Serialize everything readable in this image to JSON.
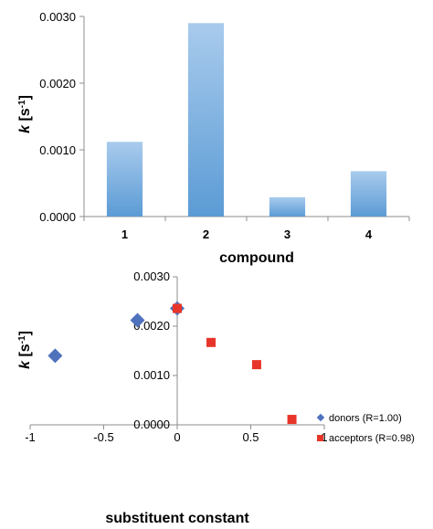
{
  "chart_data": [
    {
      "type": "bar",
      "categories": [
        "1",
        "2",
        "3",
        "4"
      ],
      "values": [
        0.00112,
        0.0029,
        0.00029,
        0.00068
      ],
      "xlabel": "compound",
      "ylabel_main": "k",
      "ylabel_unit": "[s",
      "ylabel_sup": "-1",
      "ylabel_close": "]",
      "ylim": [
        0,
        0.003
      ],
      "yticks": [
        "0.0000",
        "0.0010",
        "0.0020",
        "0.0030"
      ],
      "grid": false,
      "bar_color": "#5b9bd5"
    },
    {
      "type": "scatter",
      "xlabel": "substituent constant",
      "ylabel_main": "k",
      "ylabel_unit": "[s",
      "ylabel_sup": "-1",
      "ylabel_close": "]",
      "xlim": [
        -1,
        1
      ],
      "ylim": [
        0,
        0.003
      ],
      "xticks": [
        "-1",
        "-0.5",
        "0",
        "0.5",
        "1"
      ],
      "yticks": [
        "0.0000",
        "0.0010",
        "0.0020",
        "0.0030"
      ],
      "grid": false,
      "legend_position": "right",
      "series": [
        {
          "name": "donors (R=1.00)",
          "color": "#4f72bd",
          "marker": "diamond",
          "points": [
            [
              -0.83,
              0.0014
            ],
            [
              -0.27,
              0.00212
            ],
            [
              0.0,
              0.00236
            ]
          ]
        },
        {
          "name": "acceptors (R=0.98)",
          "color": "#e8352a",
          "marker": "square",
          "points": [
            [
              0.0,
              0.00236
            ],
            [
              0.23,
              0.00167
            ],
            [
              0.54,
              0.00122
            ],
            [
              0.78,
              0.00011
            ]
          ]
        }
      ]
    }
  ]
}
